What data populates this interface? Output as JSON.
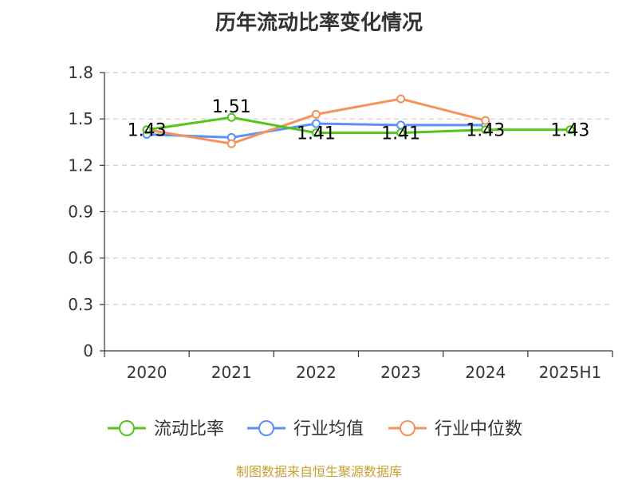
{
  "chart_data": {
    "type": "line",
    "title": "历年流动比率变化情况",
    "categories": [
      "2020",
      "2021",
      "2022",
      "2023",
      "2024",
      "2025H1"
    ],
    "ylim": [
      0,
      1.8
    ],
    "yticks": [
      "0",
      "0.3",
      "0.6",
      "0.9",
      "1.2",
      "1.5",
      "1.8"
    ],
    "grid": true,
    "legend_position": "bottom",
    "series": [
      {
        "name": "流动比率",
        "color": "#52c41a",
        "values": [
          1.43,
          1.51,
          1.41,
          1.41,
          1.43,
          1.43
        ],
        "labels": [
          "1.43",
          "1.51",
          "1.41",
          "1.41",
          "1.43",
          "1.43"
        ]
      },
      {
        "name": "行业均值",
        "color": "#5b8ff9",
        "values": [
          1.4,
          1.38,
          1.47,
          1.46,
          1.46,
          null
        ]
      },
      {
        "name": "行业中位数",
        "color": "#f6915a",
        "values": [
          1.43,
          1.34,
          1.53,
          1.63,
          1.49,
          null
        ]
      }
    ]
  },
  "source_text": "制图数据来自恒生聚源数据库"
}
